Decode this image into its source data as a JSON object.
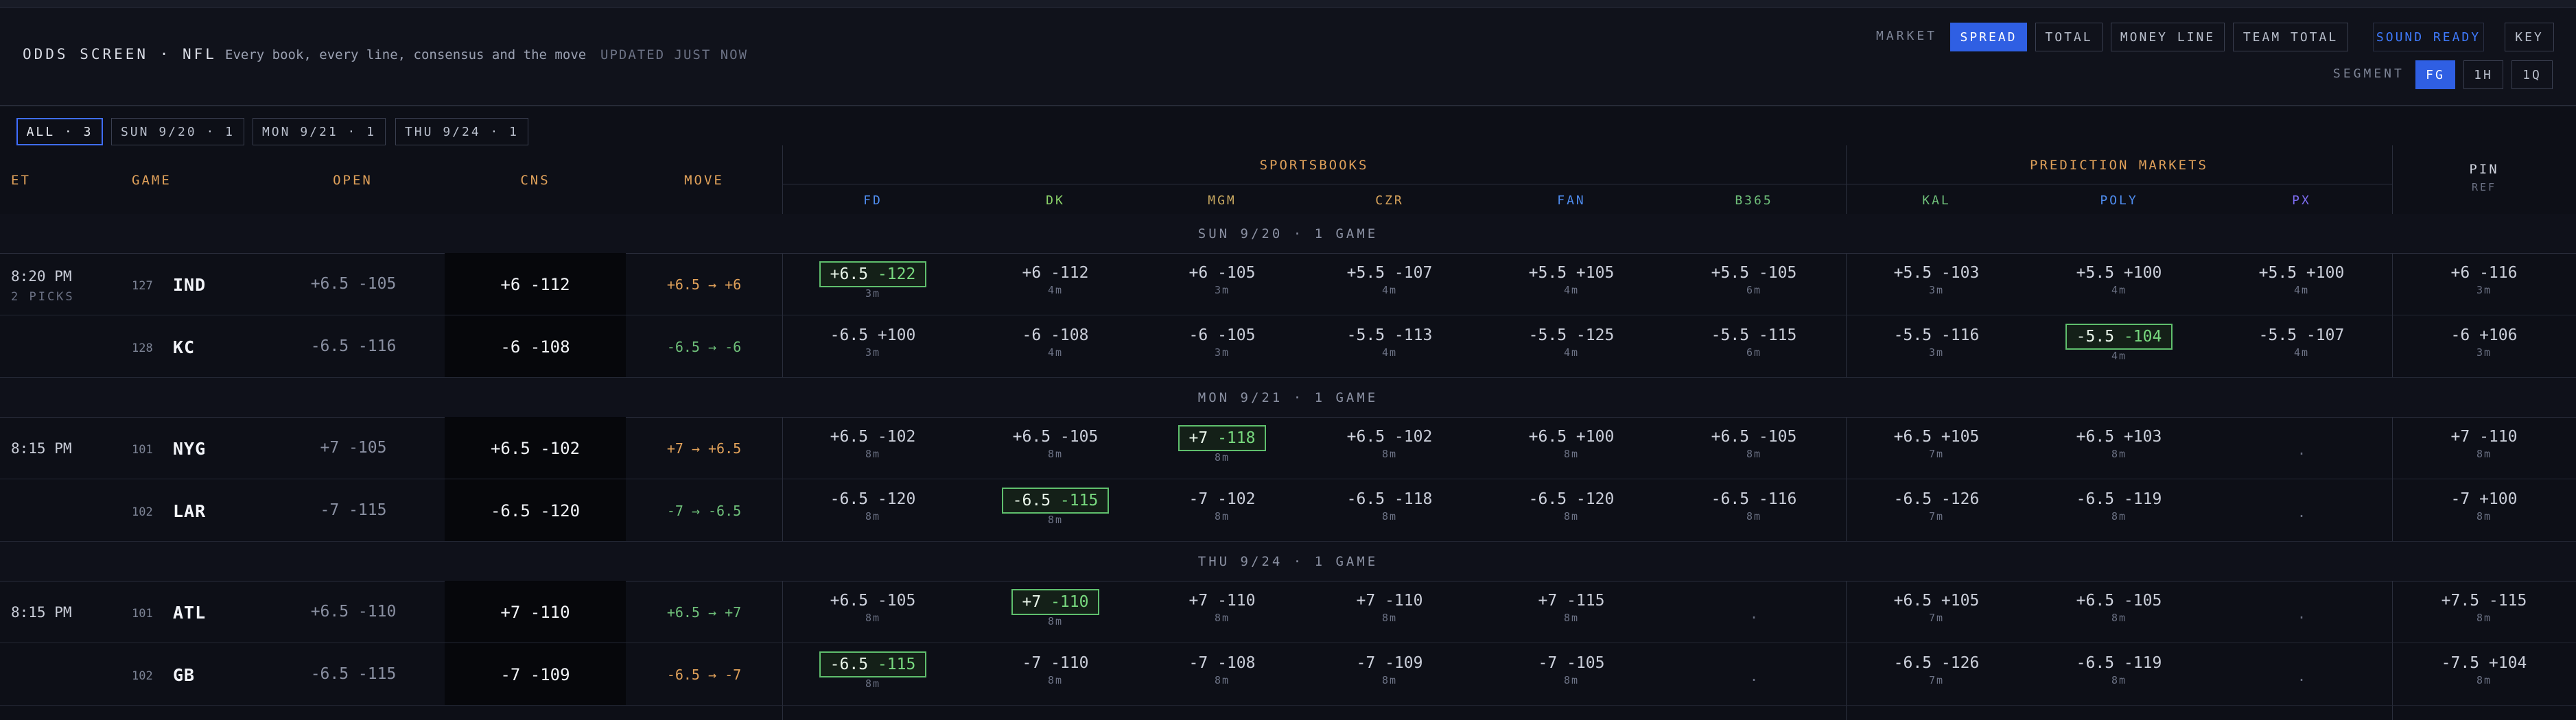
{
  "header": {
    "title": "ODDS SCREEN · NFL",
    "subtitle": "Every book, every line, consensus and the move",
    "updated": "UPDATED JUST NOW",
    "market_label": "MARKET",
    "markets": [
      "SPREAD",
      "TOTAL",
      "MONEY LINE",
      "TEAM TOTAL"
    ],
    "active_market": "SPREAD",
    "sound": "SOUND READY",
    "key": "KEY",
    "segment_label": "SEGMENT",
    "segments": [
      "FG",
      "1H",
      "1Q"
    ],
    "active_segment": "FG"
  },
  "tabs": [
    "ALL · 3",
    "SUN 9/20 · 1",
    "MON 9/21 · 1",
    "THU 9/24 · 1"
  ],
  "columns": {
    "et": "ET",
    "game": "GAME",
    "open": "OPEN",
    "cns": "CNS",
    "move": "MOVE",
    "sportsbooks": "SPORTSBOOKS",
    "prediction": "PREDICTION MARKETS",
    "pin": "PIN",
    "ref": "REF",
    "books": [
      "FD",
      "DK",
      "MGM",
      "CZR",
      "FAN",
      "B365"
    ],
    "markets": [
      "KAL",
      "POLY",
      "PX"
    ]
  },
  "colors": {
    "FD": "#4f8df0",
    "DK": "#8bd36a",
    "MGM": "#c8a860",
    "CZR": "#d9a45c",
    "FAN": "#4f8df0",
    "B365": "#6fc07a",
    "KAL": "#6fc07a",
    "POLY": "#4f8df0",
    "PX": "#7c6cf0"
  },
  "groups": [
    {
      "label": "SUN 9/20 · 1 GAME",
      "rows": [
        {
          "time": "8:20 PM",
          "picks": "2 PICKS",
          "num": "127",
          "team": "IND",
          "open": "+6.5 -105",
          "cns": "+6 -112",
          "move": "+6.5 → +6",
          "dir": "up",
          "cells": [
            [
              "+6.5",
              "-122",
              "3m",
              true
            ],
            [
              "+6",
              "-112",
              "4m",
              false
            ],
            [
              "+6",
              "-105",
              "3m",
              false
            ],
            [
              "+5.5",
              "-107",
              "4m",
              false
            ],
            [
              "+5.5",
              "+105",
              "4m",
              false
            ],
            [
              "+5.5",
              "-105",
              "6m",
              false
            ],
            [
              "+5.5",
              "-103",
              "3m",
              false
            ],
            [
              "+5.5",
              "+100",
              "4m",
              false
            ],
            [
              "+5.5",
              "+100",
              "4m",
              false
            ]
          ],
          "pin": [
            "+6",
            "-116",
            "3m"
          ]
        },
        {
          "time": "",
          "picks": "",
          "num": "128",
          "team": "KC",
          "open": "-6.5 -116",
          "cns": "-6 -108",
          "move": "-6.5 → -6",
          "dir": "dn",
          "cells": [
            [
              "-6.5",
              "+100",
              "3m",
              false
            ],
            [
              "-6",
              "-108",
              "4m",
              false
            ],
            [
              "-6",
              "-105",
              "3m",
              false
            ],
            [
              "-5.5",
              "-113",
              "4m",
              false
            ],
            [
              "-5.5",
              "-125",
              "4m",
              false
            ],
            [
              "-5.5",
              "-115",
              "6m",
              false
            ],
            [
              "-5.5",
              "-116",
              "3m",
              false
            ],
            [
              "-5.5",
              "-104",
              "4m",
              true
            ],
            [
              "-5.5",
              "-107",
              "4m",
              false
            ]
          ],
          "pin": [
            "-6",
            "+106",
            "3m"
          ]
        }
      ]
    },
    {
      "label": "MON 9/21 · 1 GAME",
      "rows": [
        {
          "time": "8:15 PM",
          "picks": "",
          "num": "101",
          "team": "NYG",
          "open": "+7 -105",
          "cns": "+6.5 -102",
          "move": "+7 → +6.5",
          "dir": "up",
          "cells": [
            [
              "+6.5",
              "-102",
              "8m",
              false
            ],
            [
              "+6.5",
              "-105",
              "8m",
              false
            ],
            [
              "+7",
              "-118",
              "8m",
              true
            ],
            [
              "+6.5",
              "-102",
              "8m",
              false
            ],
            [
              "+6.5",
              "+100",
              "8m",
              false
            ],
            [
              "+6.5",
              "-105",
              "8m",
              false
            ],
            [
              "+6.5",
              "+105",
              "7m",
              false
            ],
            [
              "+6.5",
              "+103",
              "8m",
              false
            ],
            null
          ],
          "pin": [
            "+7",
            "-110",
            "8m"
          ]
        },
        {
          "time": "",
          "picks": "",
          "num": "102",
          "team": "LAR",
          "open": "-7 -115",
          "cns": "-6.5 -120",
          "move": "-7 → -6.5",
          "dir": "dn",
          "cells": [
            [
              "-6.5",
              "-120",
              "8m",
              false
            ],
            [
              "-6.5",
              "-115",
              "8m",
              true
            ],
            [
              "-7",
              "-102",
              "8m",
              false
            ],
            [
              "-6.5",
              "-118",
              "8m",
              false
            ],
            [
              "-6.5",
              "-120",
              "8m",
              false
            ],
            [
              "-6.5",
              "-116",
              "8m",
              false
            ],
            [
              "-6.5",
              "-126",
              "7m",
              false
            ],
            [
              "-6.5",
              "-119",
              "8m",
              false
            ],
            null
          ],
          "pin": [
            "-7",
            "+100",
            "8m"
          ]
        }
      ]
    },
    {
      "label": "THU 9/24 · 1 GAME",
      "rows": [
        {
          "time": "8:15 PM",
          "picks": "",
          "num": "101",
          "team": "ATL",
          "open": "+6.5 -110",
          "cns": "+7 -110",
          "move": "+6.5 → +7",
          "dir": "dn",
          "cells": [
            [
              "+6.5",
              "-105",
              "8m",
              false
            ],
            [
              "+7",
              "-110",
              "8m",
              true
            ],
            [
              "+7",
              "-110",
              "8m",
              false
            ],
            [
              "+7",
              "-110",
              "8m",
              false
            ],
            [
              "+7",
              "-115",
              "8m",
              false
            ],
            null,
            [
              "+6.5",
              "+105",
              "7m",
              false
            ],
            [
              "+6.5",
              "-105",
              "8m",
              false
            ],
            null
          ],
          "pin": [
            "+7.5",
            "-115",
            "8m"
          ]
        },
        {
          "time": "",
          "picks": "",
          "num": "102",
          "team": "GB",
          "open": "-6.5 -115",
          "cns": "-7 -109",
          "move": "-6.5 → -7",
          "dir": "up",
          "cells": [
            [
              "-6.5",
              "-115",
              "8m",
              true
            ],
            [
              "-7",
              "-110",
              "8m",
              false
            ],
            [
              "-7",
              "-108",
              "8m",
              false
            ],
            [
              "-7",
              "-109",
              "8m",
              false
            ],
            [
              "-7",
              "-105",
              "8m",
              false
            ],
            null,
            [
              "-6.5",
              "-126",
              "7m",
              false
            ],
            [
              "-6.5",
              "-119",
              "8m",
              false
            ],
            null
          ],
          "pin": [
            "-7.5",
            "+104",
            "8m"
          ]
        }
      ]
    }
  ],
  "empty_cell": "."
}
